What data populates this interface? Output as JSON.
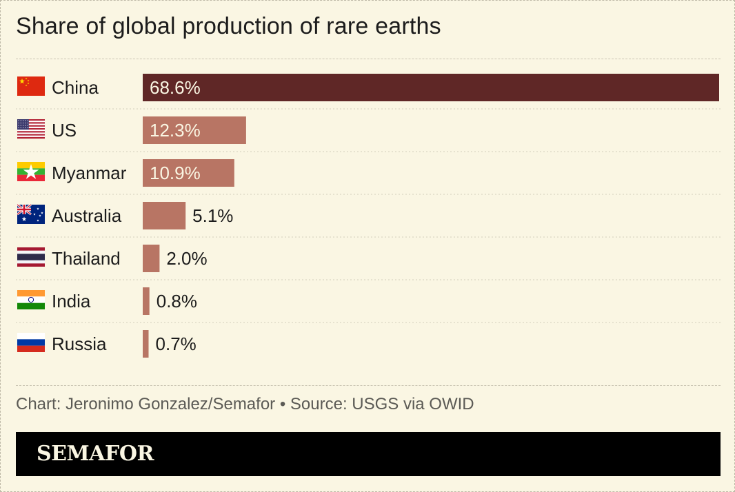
{
  "title": "Share of global production of rare earths",
  "footer": {
    "credit": "Chart: Jeronimo Gonzalez/Semafor • Source: USGS via OWID",
    "brand": "SEMAFOR"
  },
  "colors": {
    "highlight": "#5f2726",
    "bar": "#b87564",
    "label_inside": "#faf6e3",
    "label_outside": "#1c1c1c",
    "background": "#faf6e3"
  },
  "chart_data": {
    "type": "bar",
    "orientation": "horizontal",
    "title": "Share of global production of rare earths",
    "categories": [
      "China",
      "US",
      "Myanmar",
      "Australia",
      "Thailand",
      "India",
      "Russia"
    ],
    "values": [
      68.6,
      12.3,
      10.9,
      5.1,
      2.0,
      0.8,
      0.7
    ],
    "labels": [
      "68.6%",
      "12.3%",
      "10.9%",
      "5.1%",
      "2.0%",
      "0.8%",
      "0.7%"
    ],
    "flags": [
      "china-flag-icon",
      "us-flag-icon",
      "myanmar-flag-icon",
      "australia-flag-icon",
      "thailand-flag-icon",
      "india-flag-icon",
      "russia-flag-icon"
    ],
    "highlight_category": "China",
    "xlim": [
      0,
      68.6
    ],
    "grid": false,
    "xlabel": "",
    "ylabel": ""
  }
}
